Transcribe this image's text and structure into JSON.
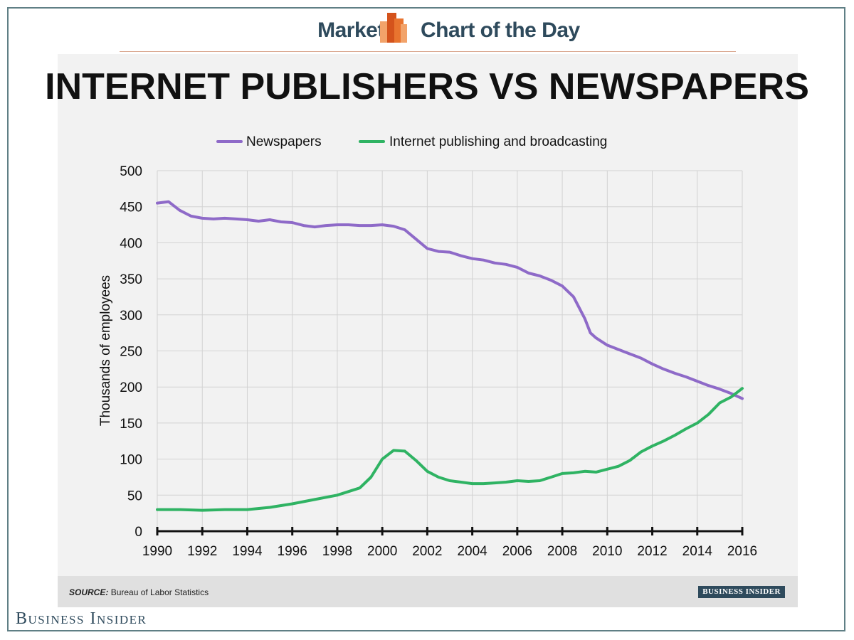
{
  "header": {
    "left_label": "Markets",
    "right_label": "Chart of the Day",
    "logo_icon": "bar-chart-logo-icon"
  },
  "source": {
    "label": "SOURCE:",
    "text": "Bureau of Labor Statistics",
    "badge": "BUSINESS INSIDER"
  },
  "footer": {
    "brand": "Business Insider"
  },
  "colors": {
    "newspapers": "#8e6ac8",
    "internet": "#2fb363",
    "brand": "#2e4a5c",
    "logo_dark": "#d4531c",
    "logo_light": "#f2a36a"
  },
  "chart_data": {
    "type": "line",
    "title": "INTERNET PUBLISHERS VS NEWSPAPERS",
    "xlabel": "",
    "ylabel": "Thousands of employees",
    "xlim": [
      1990,
      2016
    ],
    "ylim": [
      0,
      500
    ],
    "x_ticks": [
      "1990",
      "1992",
      "1994",
      "1996",
      "1998",
      "2000",
      "2002",
      "2004",
      "2006",
      "2008",
      "2010",
      "2012",
      "2014",
      "2016"
    ],
    "y_ticks": [
      "0",
      "50",
      "100",
      "150",
      "200",
      "250",
      "300",
      "350",
      "400",
      "450",
      "500"
    ],
    "grid": true,
    "legend": "top",
    "series": [
      {
        "name": "Newspapers",
        "x": [
          1990,
          1990.5,
          1991,
          1991.5,
          1992,
          1992.5,
          1993,
          1993.5,
          1994,
          1994.5,
          1995,
          1995.5,
          1996,
          1996.5,
          1997,
          1997.5,
          1998,
          1998.5,
          1999,
          1999.5,
          2000,
          2000.5,
          2001,
          2001.5,
          2002,
          2002.5,
          2003,
          2003.5,
          2004,
          2004.5,
          2005,
          2005.5,
          2006,
          2006.5,
          2007,
          2007.5,
          2008,
          2008.5,
          2009,
          2009.25,
          2009.5,
          2010,
          2010.5,
          2011,
          2011.5,
          2012,
          2012.5,
          2013,
          2013.5,
          2014,
          2014.5,
          2015,
          2015.5,
          2016
        ],
        "values": [
          455,
          457,
          445,
          437,
          434,
          433,
          434,
          433,
          432,
          430,
          432,
          429,
          428,
          424,
          422,
          424,
          425,
          425,
          424,
          424,
          425,
          423,
          418,
          405,
          392,
          388,
          387,
          382,
          378,
          376,
          372,
          370,
          366,
          358,
          354,
          348,
          340,
          325,
          295,
          275,
          268,
          258,
          252,
          246,
          240,
          232,
          225,
          219,
          214,
          208,
          202,
          197,
          191,
          184
        ]
      },
      {
        "name": "Internet publishing and broadcasting",
        "x": [
          1990,
          1991,
          1992,
          1993,
          1994,
          1995,
          1996,
          1997,
          1998,
          1999,
          1999.5,
          2000,
          2000.5,
          2001,
          2001.5,
          2002,
          2002.5,
          2003,
          2003.5,
          2004,
          2004.5,
          2005,
          2005.5,
          2006,
          2006.5,
          2007,
          2007.5,
          2008,
          2008.5,
          2009,
          2009.5,
          2010,
          2010.5,
          2011,
          2011.5,
          2012,
          2012.5,
          2013,
          2013.5,
          2014,
          2014.5,
          2015,
          2015.5,
          2016
        ],
        "values": [
          30,
          30,
          29,
          30,
          30,
          33,
          38,
          44,
          50,
          60,
          75,
          100,
          112,
          111,
          98,
          83,
          75,
          70,
          68,
          66,
          66,
          67,
          68,
          70,
          69,
          70,
          75,
          80,
          81,
          83,
          82,
          86,
          90,
          98,
          110,
          118,
          125,
          133,
          142,
          150,
          162,
          178,
          186,
          198
        ]
      }
    ]
  }
}
